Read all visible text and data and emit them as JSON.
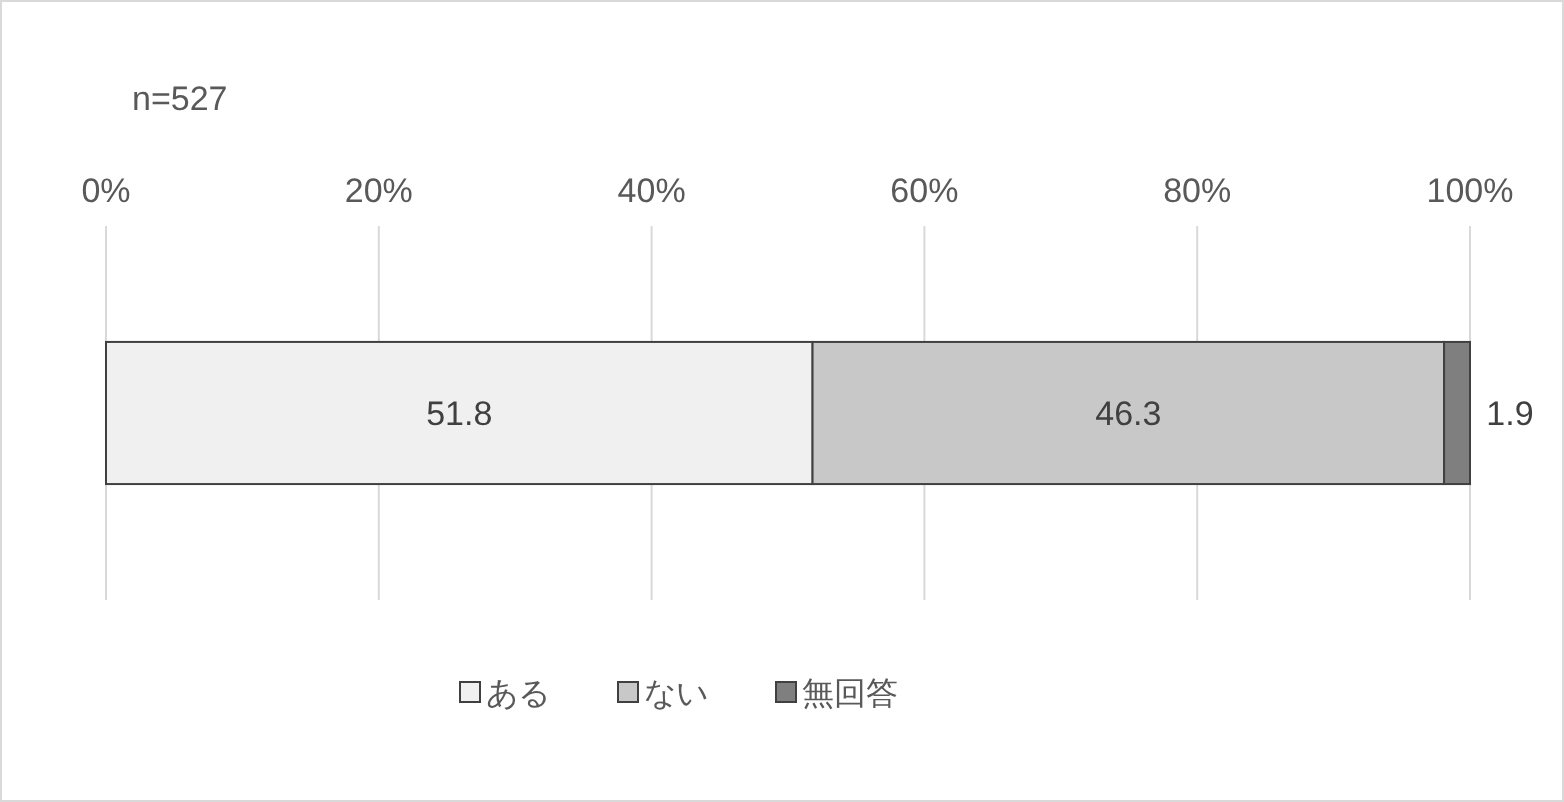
{
  "chart_data": {
    "type": "bar",
    "orientation": "horizontal",
    "stacked": true,
    "categories": [
      null
    ],
    "series": [
      {
        "name": "ある",
        "color": "#f0f0f0",
        "values": [
          51.8
        ]
      },
      {
        "name": "ない",
        "color": "#c8c8c8",
        "values": [
          46.3
        ]
      },
      {
        "name": "無回答",
        "color": "#7f7f7f",
        "values": [
          1.9
        ]
      }
    ],
    "xlim": [
      0,
      100
    ],
    "xticks": [
      {
        "value": 0,
        "label": "0%"
      },
      {
        "value": 20,
        "label": "20%"
      },
      {
        "value": 40,
        "label": "40%"
      },
      {
        "value": 60,
        "label": "60%"
      },
      {
        "value": 80,
        "label": "80%"
      },
      {
        "value": 100,
        "label": "100%"
      }
    ],
    "grid": "x",
    "legend": "bottom",
    "data_labels": true,
    "annotations": [
      "n=527"
    ]
  }
}
